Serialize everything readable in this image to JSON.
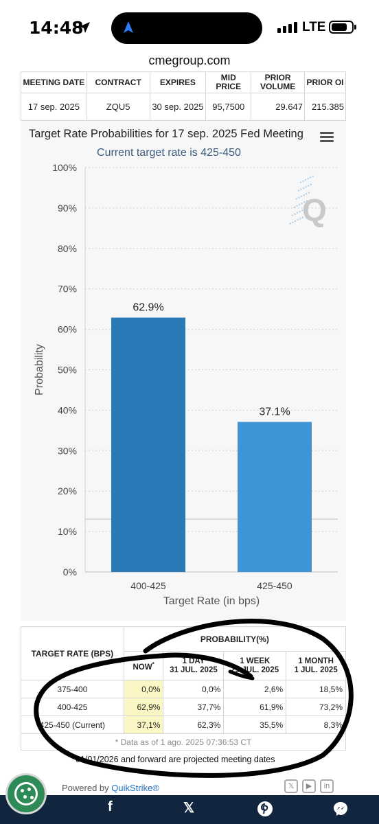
{
  "status": {
    "time": "14:48",
    "network": "LTE"
  },
  "browser": {
    "url": "cmegroup.com"
  },
  "meeting_table": {
    "headers": [
      "MEETING DATE",
      "CONTRACT",
      "EXPIRES",
      "MID PRICE",
      "PRIOR VOLUME",
      "PRIOR OI"
    ],
    "row": [
      "17 sep. 2025",
      "ZQU5",
      "30 sep. 2025",
      "95,7500",
      "29.647",
      "215.385"
    ]
  },
  "chart_data": {
    "type": "bar",
    "title": "Target Rate Probabilities for 17 sep. 2025 Fed Meeting",
    "subtitle": "Current target rate is 425-450",
    "xlabel": "Target Rate (in bps)",
    "ylabel": "Probability",
    "categories": [
      "400-425",
      "425-450"
    ],
    "values": [
      62.9,
      37.1
    ],
    "data_labels": [
      "62.9%",
      "37.1%"
    ],
    "ylim": [
      0,
      100
    ],
    "yticks": [
      "0%",
      "10%",
      "20%",
      "30%",
      "40%",
      "50%",
      "60%",
      "70%",
      "80%",
      "90%",
      "100%"
    ],
    "colors": [
      "#2a7ab8",
      "#3f95d4"
    ],
    "grid": "dotted horizontal",
    "watermark": "Q"
  },
  "prob_table": {
    "target_rate_header": "TARGET RATE (BPS)",
    "probability_header": "PROBABILITY(%)",
    "columns": [
      {
        "line1": "NOW",
        "sup": "*",
        "line2": ""
      },
      {
        "line1": "1 DAY",
        "line2": "31 JUL. 2025"
      },
      {
        "line1": "1 WEEK",
        "line2": "25 JUL. 2025"
      },
      {
        "line1": "1 MONTH",
        "line2": "1 JUL. 2025"
      }
    ],
    "rows": [
      {
        "rate": "375-400",
        "values": [
          "0,0%",
          "0,0%",
          "2,6%",
          "18,5%"
        ]
      },
      {
        "rate": "400-425",
        "values": [
          "62,9%",
          "37,7%",
          "61,9%",
          "73,2%"
        ]
      },
      {
        "rate": "425-450 (Current)",
        "values": [
          "37,1%",
          "62,3%",
          "35,5%",
          "8,3%"
        ]
      }
    ],
    "note": "* Data as of 1 ago. 2025 07:36:53 CT"
  },
  "projection_note": "01/01/2026 and forward are projected meeting dates",
  "footer": {
    "powered_by": "Powered by",
    "brand": "QuikStrike®"
  },
  "share_bar": {
    "icons": [
      "facebook-icon",
      "x-icon",
      "pinterest-icon",
      "messenger-icon"
    ]
  }
}
